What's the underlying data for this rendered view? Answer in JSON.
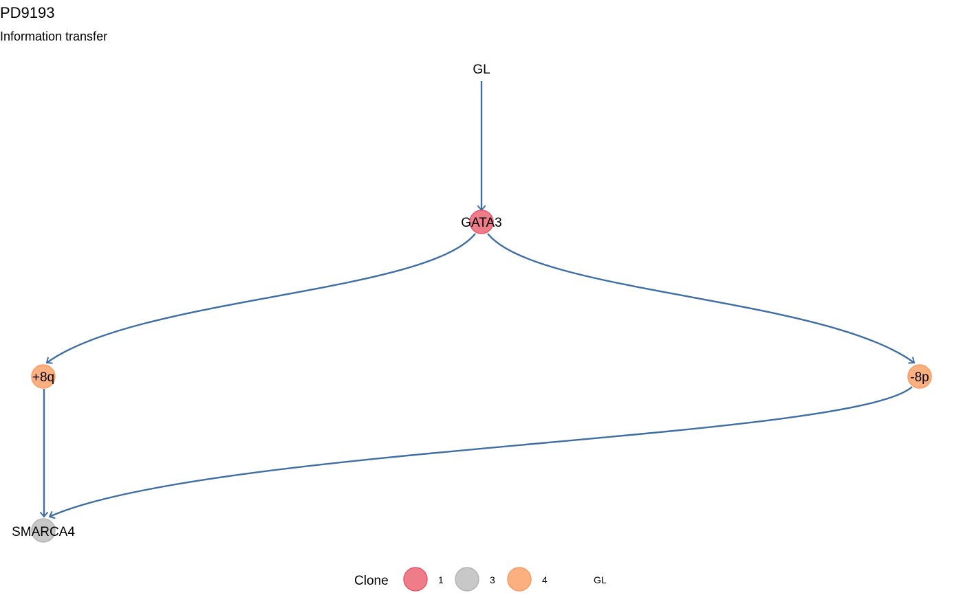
{
  "header": {
    "title": "PD9193",
    "subtitle": "Information transfer"
  },
  "colors": {
    "edge": "#3e6ea3",
    "clone_1": "#ee7d89",
    "clone_1_stroke": "#e4566a",
    "clone_3": "#c8c8c8",
    "clone_3_stroke": "#b3b3b3",
    "clone_4": "#fdb07f",
    "clone_4_stroke": "#f79b62"
  },
  "nodes": [
    {
      "id": "GL",
      "label": "GL",
      "clone": "GL"
    },
    {
      "id": "GATA3",
      "label": "GATA3",
      "clone": "1"
    },
    {
      "id": "+8q",
      "label": "+8q",
      "clone": "4"
    },
    {
      "id": "-8p",
      "label": "-8p",
      "clone": "4"
    },
    {
      "id": "SMARCA4",
      "label": "SMARCA4",
      "clone": "3"
    }
  ],
  "edges": [
    {
      "from": "GL",
      "to": "GATA3"
    },
    {
      "from": "GATA3",
      "to": "+8q"
    },
    {
      "from": "GATA3",
      "to": "-8p"
    },
    {
      "from": "+8q",
      "to": "SMARCA4"
    },
    {
      "from": "-8p",
      "to": "SMARCA4"
    }
  ],
  "legend": {
    "title": "Clone",
    "items": [
      {
        "label": "1",
        "color_key": "clone_1"
      },
      {
        "label": "3",
        "color_key": "clone_3"
      },
      {
        "label": "4",
        "color_key": "clone_4"
      },
      {
        "label": "GL",
        "color_key": null
      }
    ]
  }
}
